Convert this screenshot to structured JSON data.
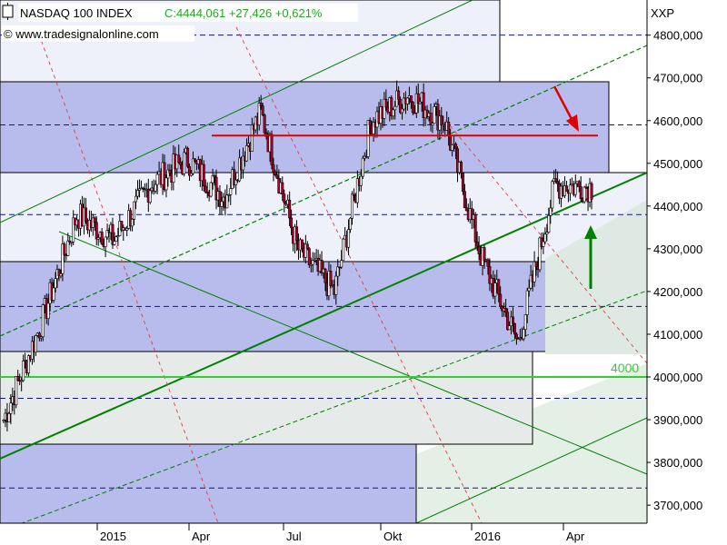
{
  "header": {
    "title": "NASDAQ 100 INDEX",
    "quote": "C:4444,061 +27,426 +0,621%",
    "copyright": "© www.tradesignalonline.com",
    "symbol": "XXP"
  },
  "annotations": {
    "level_label": "4000"
  },
  "colors": {
    "up_candle": "#ffffff",
    "down_candle": "#b0002a",
    "channel_line": "#008000",
    "resistance_line": "#e00000",
    "level_line": "#33cc33",
    "quote_text": "#22aa22",
    "arrow_up": "#008000",
    "arrow_down": "#e00000",
    "box_fill_blue": "#b8bcec",
    "box_fill_light": "#eef0fa",
    "box_fill_green": "#dde8e0"
  },
  "chart_data": {
    "type": "candlestick",
    "title": "NASDAQ 100 INDEX",
    "x_tick_labels": [
      "2015",
      "Apr",
      "Jul",
      "Okt",
      "2016",
      "Apr"
    ],
    "y_tick_labels": [
      "3700,000",
      "3800,000",
      "3900,000",
      "4000,000",
      "4100,000",
      "4200,000",
      "4300,000",
      "4400,000",
      "4500,000",
      "4600,000",
      "4700,000",
      "4800,000"
    ],
    "ylim": [
      3660,
      4880
    ],
    "grid": false,
    "dashed_levels": [
      3740,
      3950,
      4165,
      4380,
      4590,
      4800
    ],
    "horizontal_levels": [
      {
        "value": 4000,
        "label": "4000",
        "color": "green"
      },
      {
        "value": 4565,
        "label": "",
        "color": "red"
      }
    ],
    "approx_closes": [
      {
        "period": "2014-12",
        "value": 3900
      },
      {
        "period": "2015-01",
        "value": 4120
      },
      {
        "period": "2015-02",
        "value": 4380
      },
      {
        "period": "2015-03",
        "value": 4320
      },
      {
        "period": "2015-04",
        "value": 4450
      },
      {
        "period": "2015-05",
        "value": 4510
      },
      {
        "period": "2015-06",
        "value": 4420
      },
      {
        "period": "2015-07",
        "value": 4620
      },
      {
        "period": "2015-08",
        "value": 4300
      },
      {
        "period": "2015-09",
        "value": 4200
      },
      {
        "period": "2015-10",
        "value": 4600
      },
      {
        "period": "2015-11",
        "value": 4660
      },
      {
        "period": "2015-12",
        "value": 4600
      },
      {
        "period": "2016-01",
        "value": 4280
      },
      {
        "period": "2016-02",
        "value": 4080
      },
      {
        "period": "2016-03",
        "value": 4450
      },
      {
        "period": "2016-04",
        "value": 4444
      }
    ]
  }
}
